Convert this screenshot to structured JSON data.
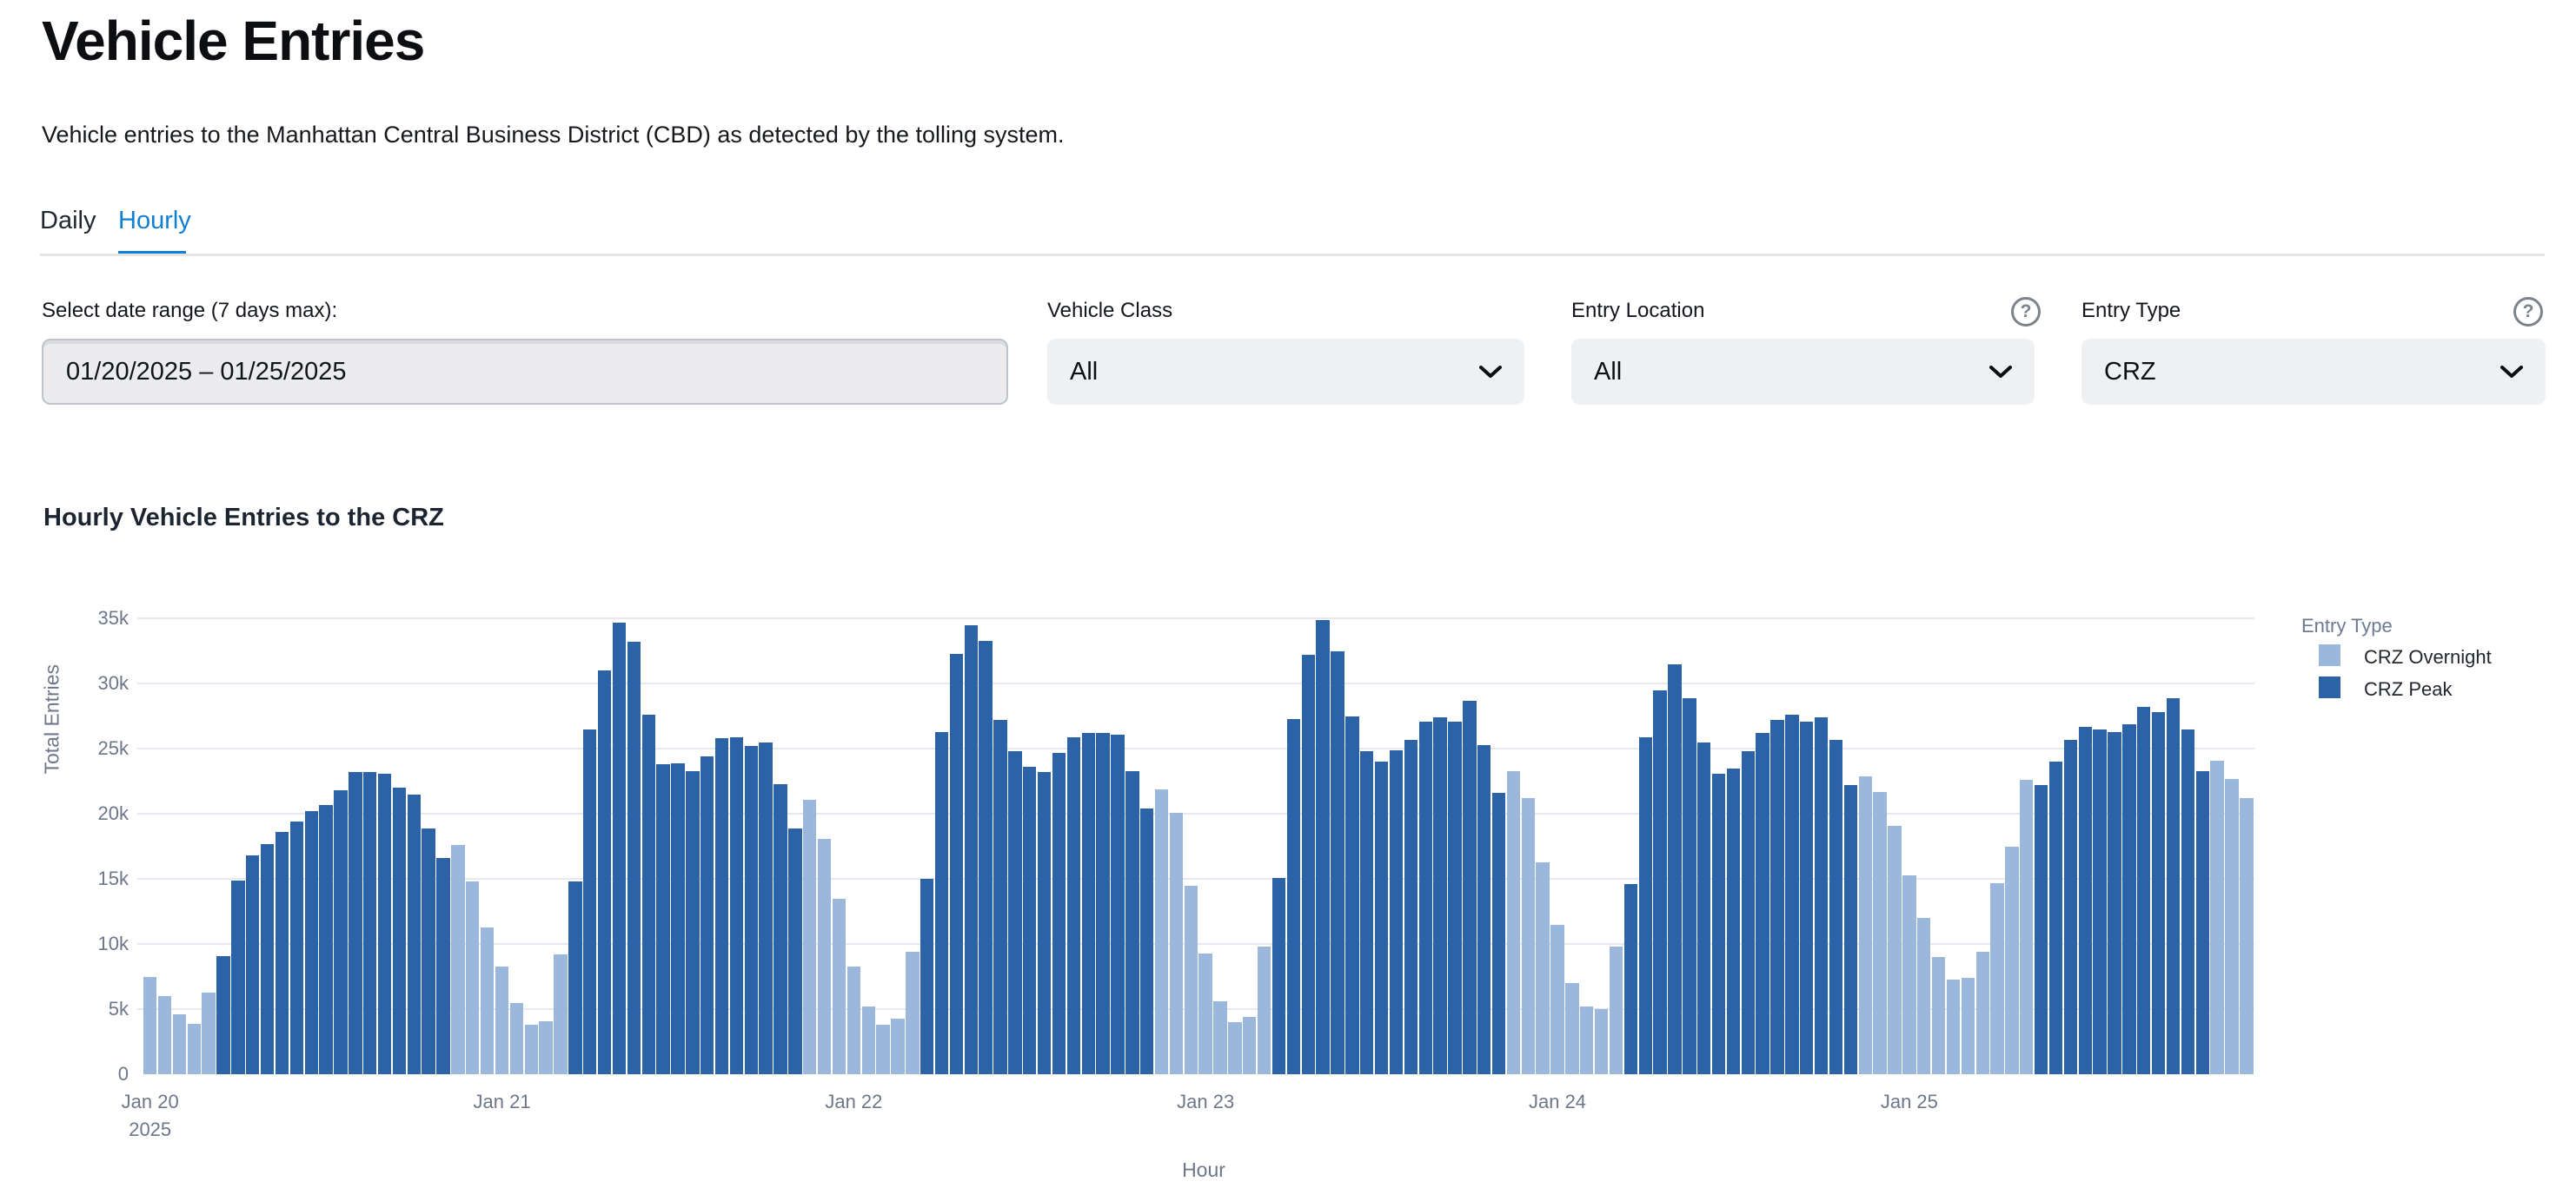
{
  "page": {
    "title": "Vehicle Entries",
    "subtitle": "Vehicle entries to the Manhattan Central Business District (CBD) as detected by the tolling system."
  },
  "tabs": [
    {
      "label": "Daily",
      "active": false
    },
    {
      "label": "Hourly",
      "active": true
    }
  ],
  "filters": {
    "date_range": {
      "label": "Select date range (7 days max):",
      "value": "01/20/2025 – 01/25/2025"
    },
    "vehicle_class": {
      "label": "Vehicle Class",
      "value": "All"
    },
    "entry_location": {
      "label": "Entry Location",
      "value": "All",
      "help_icon": "question-mark-circle"
    },
    "entry_type": {
      "label": "Entry Type",
      "value": "CRZ",
      "help_icon": "question-mark-circle"
    }
  },
  "colors": {
    "accent_blue": "#0f7fd4",
    "overnight": "#9bb8dc",
    "peak": "#2c62a6",
    "gridline": "#e6e9f0",
    "axis_text": "#6d7789"
  },
  "chart_data": {
    "type": "bar",
    "title": "Hourly Vehicle Entries to the CRZ",
    "xlabel": "Hour",
    "ylabel": "Total Entries",
    "ylim": [
      0,
      35000
    ],
    "yticks": [
      "0",
      "5k",
      "10k",
      "15k",
      "20k",
      "25k",
      "30k",
      "35k"
    ],
    "grid": true,
    "legend": {
      "title": "Entry Type",
      "position": "right",
      "items": [
        {
          "label": "CRZ Overnight",
          "color": "#9bb8dc"
        },
        {
          "label": "CRZ Peak",
          "color": "#2c62a6"
        }
      ]
    },
    "value_unit": "thousands of entries",
    "days": [
      {
        "label": "Jan 20",
        "sublabel": "2025",
        "peak_hours": [
          5,
          20
        ],
        "values_k": [
          7.5,
          6.0,
          4.6,
          3.9,
          6.3,
          9.1,
          14.9,
          16.8,
          17.7,
          18.6,
          19.4,
          20.2,
          20.7,
          21.8,
          23.2,
          23.2,
          23.1,
          22.0,
          21.5,
          18.9,
          16.6,
          17.6,
          14.8,
          11.3
        ]
      },
      {
        "label": "Jan 21",
        "sublabel": "",
        "peak_hours": [
          5,
          20
        ],
        "values_k": [
          8.3,
          5.5,
          3.8,
          4.1,
          9.2,
          14.8,
          26.5,
          31.0,
          34.7,
          33.2,
          27.6,
          23.8,
          23.9,
          23.3,
          24.4,
          25.8,
          25.9,
          25.2,
          25.5,
          22.3,
          18.9,
          21.1,
          18.1,
          13.5
        ]
      },
      {
        "label": "Jan 22",
        "sublabel": "",
        "peak_hours": [
          5,
          20
        ],
        "values_k": [
          8.3,
          5.2,
          3.8,
          4.3,
          9.4,
          15.0,
          26.3,
          32.3,
          34.5,
          33.3,
          27.2,
          24.8,
          23.6,
          23.2,
          24.7,
          25.9,
          26.2,
          26.2,
          26.1,
          23.3,
          20.4,
          21.9,
          20.1,
          14.5
        ]
      },
      {
        "label": "Jan 23",
        "sublabel": "",
        "peak_hours": [
          5,
          20
        ],
        "values_k": [
          9.3,
          5.6,
          4.0,
          4.4,
          9.8,
          15.1,
          27.3,
          32.2,
          34.9,
          32.5,
          27.5,
          24.8,
          24.0,
          24.9,
          25.7,
          27.1,
          27.4,
          27.1,
          28.7,
          25.3,
          21.6,
          23.3,
          21.2,
          16.3
        ]
      },
      {
        "label": "Jan 24",
        "sublabel": "",
        "peak_hours": [
          5,
          20
        ],
        "values_k": [
          11.5,
          7.0,
          5.2,
          5.0,
          9.8,
          14.6,
          25.9,
          29.5,
          31.5,
          28.9,
          25.5,
          23.1,
          23.5,
          24.8,
          26.2,
          27.2,
          27.6,
          27.1,
          27.4,
          25.7,
          22.2,
          22.9,
          21.7,
          19.1
        ]
      },
      {
        "label": "Jan 25",
        "sublabel": "",
        "peak_hours": [
          9,
          20
        ],
        "values_k": [
          15.3,
          12.0,
          9.0,
          7.3,
          7.4,
          9.4,
          14.7,
          17.5,
          22.6,
          22.2,
          24.0,
          25.7,
          26.7,
          26.5,
          26.3,
          26.9,
          28.2,
          27.8,
          28.9,
          26.5,
          23.3,
          24.1,
          22.7,
          21.2
        ]
      }
    ]
  }
}
